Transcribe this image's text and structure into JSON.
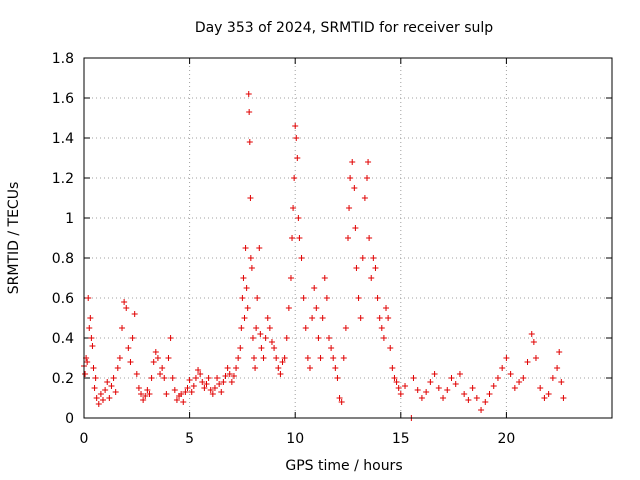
{
  "chart_data": {
    "type": "scatter",
    "title": "Day 353 of 2024, SRMTID for receiver sulp",
    "xlabel": "GPS time / hours",
    "ylabel": "SRMTID / TECUs",
    "xlim": [
      0,
      25
    ],
    "ylim": [
      0,
      1.8
    ],
    "xticks": [
      0,
      5,
      10,
      15,
      20
    ],
    "xtick_labels": [
      "0",
      "5",
      "10",
      "15",
      "20"
    ],
    "yticks": [
      0,
      0.2,
      0.4,
      0.6,
      0.8,
      1,
      1.2,
      1.4,
      1.6,
      1.8
    ],
    "ytick_labels": [
      "0",
      "0.2",
      "0.4",
      "0.6",
      "0.8",
      "1",
      "1.2",
      "1.4",
      "1.6",
      "1.8"
    ],
    "grid": true,
    "marker": "+",
    "color": "#e00000",
    "series": [
      {
        "name": "SRMTID",
        "points": [
          [
            0.0,
            0.26
          ],
          [
            0.05,
            0.22
          ],
          [
            0.1,
            0.3
          ],
          [
            0.15,
            0.28
          ],
          [
            0.2,
            0.6
          ],
          [
            0.25,
            0.45
          ],
          [
            0.3,
            0.5
          ],
          [
            0.35,
            0.4
          ],
          [
            0.4,
            0.36
          ],
          [
            0.45,
            0.25
          ],
          [
            0.5,
            0.15
          ],
          [
            0.55,
            0.2
          ],
          [
            0.6,
            0.1
          ],
          [
            0.7,
            0.07
          ],
          [
            0.8,
            0.12
          ],
          [
            0.9,
            0.09
          ],
          [
            1.0,
            0.14
          ],
          [
            1.1,
            0.18
          ],
          [
            1.2,
            0.1
          ],
          [
            1.3,
            0.16
          ],
          [
            1.4,
            0.2
          ],
          [
            1.5,
            0.13
          ],
          [
            1.6,
            0.25
          ],
          [
            1.7,
            0.3
          ],
          [
            1.8,
            0.45
          ],
          [
            1.9,
            0.58
          ],
          [
            2.0,
            0.55
          ],
          [
            2.1,
            0.35
          ],
          [
            2.2,
            0.28
          ],
          [
            2.3,
            0.4
          ],
          [
            2.4,
            0.52
          ],
          [
            2.5,
            0.22
          ],
          [
            2.6,
            0.15
          ],
          [
            2.7,
            0.12
          ],
          [
            2.8,
            0.09
          ],
          [
            2.9,
            0.11
          ],
          [
            3.0,
            0.14
          ],
          [
            3.1,
            0.12
          ],
          [
            3.2,
            0.2
          ],
          [
            3.3,
            0.28
          ],
          [
            3.4,
            0.33
          ],
          [
            3.5,
            0.3
          ],
          [
            3.6,
            0.22
          ],
          [
            3.7,
            0.25
          ],
          [
            3.8,
            0.2
          ],
          [
            3.9,
            0.12
          ],
          [
            4.0,
            0.3
          ],
          [
            4.1,
            0.4
          ],
          [
            4.2,
            0.2
          ],
          [
            4.3,
            0.14
          ],
          [
            4.4,
            0.09
          ],
          [
            4.5,
            0.11
          ],
          [
            4.6,
            0.12
          ],
          [
            4.7,
            0.08
          ],
          [
            4.8,
            0.13
          ],
          [
            4.9,
            0.15
          ],
          [
            5.0,
            0.19
          ],
          [
            5.1,
            0.13
          ],
          [
            5.2,
            0.16
          ],
          [
            5.3,
            0.2
          ],
          [
            5.4,
            0.24
          ],
          [
            5.5,
            0.22
          ],
          [
            5.6,
            0.18
          ],
          [
            5.7,
            0.15
          ],
          [
            5.8,
            0.17
          ],
          [
            5.9,
            0.2
          ],
          [
            6.0,
            0.14
          ],
          [
            6.1,
            0.12
          ],
          [
            6.2,
            0.15
          ],
          [
            6.3,
            0.2
          ],
          [
            6.4,
            0.17
          ],
          [
            6.5,
            0.13
          ],
          [
            6.6,
            0.18
          ],
          [
            6.7,
            0.21
          ],
          [
            6.8,
            0.25
          ],
          [
            6.9,
            0.22
          ],
          [
            7.0,
            0.18
          ],
          [
            7.1,
            0.21
          ],
          [
            7.2,
            0.25
          ],
          [
            7.3,
            0.3
          ],
          [
            7.4,
            0.35
          ],
          [
            7.45,
            0.45
          ],
          [
            7.5,
            0.6
          ],
          [
            7.55,
            0.7
          ],
          [
            7.6,
            0.5
          ],
          [
            7.65,
            0.85
          ],
          [
            7.7,
            0.65
          ],
          [
            7.75,
            0.55
          ],
          [
            7.8,
            1.62
          ],
          [
            7.82,
            1.53
          ],
          [
            7.85,
            1.38
          ],
          [
            7.88,
            1.1
          ],
          [
            7.9,
            0.8
          ],
          [
            7.95,
            0.75
          ],
          [
            8.0,
            0.4
          ],
          [
            8.05,
            0.3
          ],
          [
            8.1,
            0.25
          ],
          [
            8.15,
            0.45
          ],
          [
            8.2,
            0.6
          ],
          [
            8.3,
            0.85
          ],
          [
            8.35,
            0.42
          ],
          [
            8.4,
            0.35
          ],
          [
            8.5,
            0.3
          ],
          [
            8.6,
            0.4
          ],
          [
            8.7,
            0.5
          ],
          [
            8.8,
            0.45
          ],
          [
            8.9,
            0.38
          ],
          [
            9.0,
            0.35
          ],
          [
            9.1,
            0.3
          ],
          [
            9.2,
            0.25
          ],
          [
            9.3,
            0.22
          ],
          [
            9.4,
            0.28
          ],
          [
            9.5,
            0.3
          ],
          [
            9.6,
            0.4
          ],
          [
            9.7,
            0.55
          ],
          [
            9.8,
            0.7
          ],
          [
            9.85,
            0.9
          ],
          [
            9.9,
            1.05
          ],
          [
            9.95,
            1.2
          ],
          [
            10.0,
            1.46
          ],
          [
            10.05,
            1.4
          ],
          [
            10.1,
            1.3
          ],
          [
            10.15,
            1.0
          ],
          [
            10.2,
            0.9
          ],
          [
            10.3,
            0.8
          ],
          [
            10.4,
            0.6
          ],
          [
            10.5,
            0.45
          ],
          [
            10.6,
            0.3
          ],
          [
            10.7,
            0.25
          ],
          [
            10.8,
            0.5
          ],
          [
            10.9,
            0.65
          ],
          [
            11.0,
            0.55
          ],
          [
            11.1,
            0.4
          ],
          [
            11.2,
            0.3
          ],
          [
            11.3,
            0.5
          ],
          [
            11.4,
            0.7
          ],
          [
            11.5,
            0.6
          ],
          [
            11.6,
            0.4
          ],
          [
            11.7,
            0.35
          ],
          [
            11.8,
            0.3
          ],
          [
            11.9,
            0.25
          ],
          [
            12.0,
            0.2
          ],
          [
            12.1,
            0.1
          ],
          [
            12.2,
            0.08
          ],
          [
            12.3,
            0.3
          ],
          [
            12.4,
            0.45
          ],
          [
            12.5,
            0.9
          ],
          [
            12.55,
            1.05
          ],
          [
            12.6,
            1.2
          ],
          [
            12.7,
            1.28
          ],
          [
            12.8,
            1.15
          ],
          [
            12.85,
            0.95
          ],
          [
            12.9,
            0.75
          ],
          [
            13.0,
            0.6
          ],
          [
            13.1,
            0.5
          ],
          [
            13.2,
            0.8
          ],
          [
            13.3,
            1.1
          ],
          [
            13.4,
            1.2
          ],
          [
            13.45,
            1.28
          ],
          [
            13.5,
            0.9
          ],
          [
            13.6,
            0.7
          ],
          [
            13.7,
            0.8
          ],
          [
            13.8,
            0.75
          ],
          [
            13.9,
            0.6
          ],
          [
            14.0,
            0.5
          ],
          [
            14.1,
            0.45
          ],
          [
            14.2,
            0.4
          ],
          [
            14.3,
            0.55
          ],
          [
            14.4,
            0.5
          ],
          [
            14.5,
            0.35
          ],
          [
            14.6,
            0.25
          ],
          [
            14.7,
            0.2
          ],
          [
            14.8,
            0.18
          ],
          [
            14.9,
            0.15
          ],
          [
            15.0,
            0.12
          ],
          [
            15.2,
            0.16
          ],
          [
            15.5,
            0.0
          ],
          [
            15.6,
            0.2
          ],
          [
            15.8,
            0.14
          ],
          [
            16.0,
            0.1
          ],
          [
            16.2,
            0.13
          ],
          [
            16.4,
            0.18
          ],
          [
            16.6,
            0.22
          ],
          [
            16.8,
            0.15
          ],
          [
            17.0,
            0.1
          ],
          [
            17.2,
            0.14
          ],
          [
            17.4,
            0.2
          ],
          [
            17.6,
            0.17
          ],
          [
            17.8,
            0.22
          ],
          [
            18.0,
            0.12
          ],
          [
            18.2,
            0.09
          ],
          [
            18.4,
            0.15
          ],
          [
            18.6,
            0.1
          ],
          [
            18.8,
            0.04
          ],
          [
            19.0,
            0.08
          ],
          [
            19.2,
            0.12
          ],
          [
            19.4,
            0.16
          ],
          [
            19.6,
            0.2
          ],
          [
            19.8,
            0.25
          ],
          [
            20.0,
            0.3
          ],
          [
            20.2,
            0.22
          ],
          [
            20.4,
            0.15
          ],
          [
            20.6,
            0.18
          ],
          [
            20.8,
            0.2
          ],
          [
            21.0,
            0.28
          ],
          [
            21.2,
            0.42
          ],
          [
            21.3,
            0.38
          ],
          [
            21.4,
            0.3
          ],
          [
            21.6,
            0.15
          ],
          [
            21.8,
            0.1
          ],
          [
            22.0,
            0.12
          ],
          [
            22.2,
            0.2
          ],
          [
            22.4,
            0.25
          ],
          [
            22.5,
            0.33
          ],
          [
            22.6,
            0.18
          ],
          [
            22.7,
            0.1
          ]
        ]
      }
    ]
  }
}
